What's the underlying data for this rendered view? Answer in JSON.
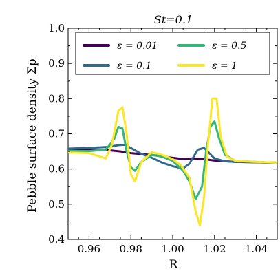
{
  "chart_data": {
    "type": "line",
    "title": "St=0.1",
    "xlabel": "R",
    "ylabel": "Pebble surface density Σp",
    "xlim": [
      0.95,
      1.05
    ],
    "ylim": [
      0.4,
      1.0
    ],
    "xticks": [
      0.96,
      0.98,
      1.0,
      1.02,
      1.04
    ],
    "xtick_labels": [
      "0.96",
      "0.98",
      "1.00",
      "1.02",
      "1.04"
    ],
    "yticks": [
      0.4,
      0.5,
      0.6,
      0.7,
      0.8,
      0.9,
      1.0
    ],
    "ytick_labels": [
      "0.4",
      "0.5",
      "0.6",
      "0.7",
      "0.8",
      "0.9",
      "1.0"
    ],
    "grid": false,
    "legend_position": "top",
    "series": [
      {
        "name": "ε = 0.01",
        "color": "#440154",
        "x": [
          0.95,
          0.96,
          0.97,
          0.975,
          0.98,
          0.99,
          1.0,
          1.005,
          1.01,
          1.015,
          1.02,
          1.03,
          1.04,
          1.05
        ],
        "y": [
          0.655,
          0.655,
          0.653,
          0.65,
          0.645,
          0.64,
          0.632,
          0.628,
          0.63,
          0.628,
          0.624,
          0.62,
          0.619,
          0.618
        ]
      },
      {
        "name": "ε = 0.1",
        "color": "#31688e",
        "x": [
          0.95,
          0.96,
          0.97,
          0.974,
          0.977,
          0.98,
          0.985,
          0.99,
          0.995,
          1.0,
          1.005,
          1.008,
          1.012,
          1.015,
          1.02,
          1.025,
          1.03,
          1.04,
          1.05
        ],
        "y": [
          0.658,
          0.66,
          0.663,
          0.668,
          0.669,
          0.66,
          0.643,
          0.632,
          0.618,
          0.608,
          0.602,
          0.615,
          0.655,
          0.66,
          0.63,
          0.622,
          0.62,
          0.619,
          0.617
        ]
      },
      {
        "name": "ε = 0.5",
        "color": "#35b779",
        "x": [
          0.95,
          0.96,
          0.968,
          0.972,
          0.974,
          0.976,
          0.978,
          0.98,
          0.982,
          0.985,
          0.99,
          0.995,
          1.0,
          1.005,
          1.008,
          1.011,
          1.014,
          1.016,
          1.018,
          1.02,
          1.022,
          1.025,
          1.03,
          1.04,
          1.05
        ],
        "y": [
          0.652,
          0.651,
          0.655,
          0.685,
          0.72,
          0.715,
          0.65,
          0.605,
          0.595,
          0.62,
          0.64,
          0.635,
          0.623,
          0.595,
          0.565,
          0.515,
          0.55,
          0.65,
          0.72,
          0.735,
          0.69,
          0.64,
          0.623,
          0.62,
          0.618
        ]
      },
      {
        "name": "ε = 1",
        "color": "#fde725",
        "x": [
          0.95,
          0.96,
          0.968,
          0.971,
          0.974,
          0.976,
          0.978,
          0.98,
          0.982,
          0.985,
          0.99,
          0.995,
          1.0,
          1.004,
          1.008,
          1.011,
          1.013,
          1.015,
          1.017,
          1.019,
          1.021,
          1.023,
          1.026,
          1.03,
          1.04,
          1.05
        ],
        "y": [
          0.647,
          0.645,
          0.63,
          0.67,
          0.765,
          0.775,
          0.7,
          0.585,
          0.565,
          0.62,
          0.648,
          0.64,
          0.628,
          0.61,
          0.575,
          0.48,
          0.44,
          0.52,
          0.68,
          0.8,
          0.8,
          0.69,
          0.635,
          0.623,
          0.62,
          0.618
        ]
      }
    ]
  }
}
